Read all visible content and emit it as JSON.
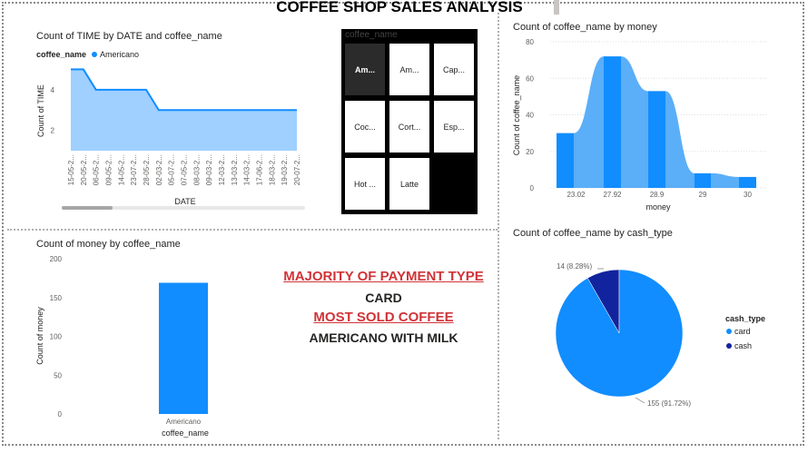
{
  "header": {
    "title": "COFFEE SHOP SALES ANALYSIS"
  },
  "colors": {
    "primary": "#118DFF",
    "light": "#9FD0FF",
    "dark": "#12239E",
    "alt_bar": "#5BAEF8",
    "callout_red": "#D13438"
  },
  "line_chart": {
    "title": "Count of TIME by DATE and coffee_name",
    "legend_title": "coffee_name",
    "legend_item": "Americano",
    "xlabel": "DATE",
    "ylabel": "Count of TIME"
  },
  "slicer": {
    "header": "coffee_name",
    "items": [
      "Am...",
      "Am...",
      "Cap...",
      "Coc...",
      "Cort...",
      "Esp...",
      "Hot ...",
      "Latte"
    ],
    "selected_index": 0
  },
  "density_chart": {
    "title": "Count of coffee_name by money",
    "xlabel": "money",
    "ylabel": "Count of coffee_name"
  },
  "bar_chart": {
    "title": "Count of money by coffee_name",
    "xlabel": "coffee_name",
    "ylabel": "Count of money"
  },
  "callouts": {
    "payment_heading": "MAJORITY OF PAYMENT TYPE",
    "payment_value": "CARD",
    "coffee_heading": "MOST SOLD COFFEE",
    "coffee_value": "AMERICANO WITH MILK"
  },
  "pie_chart": {
    "title": "Count of coffee_name by cash_type",
    "legend_title": "cash_type"
  },
  "chart_data": [
    {
      "type": "area",
      "title": "Count of TIME by DATE and coffee_name",
      "xlabel": "DATE",
      "ylabel": "Count of TIME",
      "categories": [
        "15-05-2...",
        "20-05-2...",
        "06-05-2...",
        "09-05-2...",
        "14-05-2...",
        "23-07-2...",
        "28-05-2...",
        "02-03-2...",
        "05-07-2...",
        "07-05-2...",
        "08-03-2...",
        "09-03-2...",
        "12-03-2...",
        "13-03-2...",
        "14-03-2...",
        "17-06-2...",
        "18-03-2...",
        "19-03-2...",
        "20-07-2..."
      ],
      "series": [
        {
          "name": "Americano",
          "values": [
            5,
            5,
            4,
            4,
            4,
            4,
            4,
            3,
            3,
            3,
            3,
            3,
            3,
            3,
            3,
            3,
            3,
            3,
            3
          ]
        }
      ],
      "y_ticks": [
        2,
        4
      ],
      "ylim": [
        1,
        5.6
      ],
      "legend": "top-left"
    },
    {
      "type": "bar",
      "title": "Count of coffee_name by money",
      "xlabel": "money",
      "ylabel": "Count of coffee_name",
      "categories": [
        "23.02",
        "27.92",
        "28.9",
        "29",
        "30"
      ],
      "values": [
        30,
        72,
        53,
        8,
        6
      ],
      "y_ticks": [
        0,
        20,
        40,
        60,
        80
      ],
      "ylim": [
        0,
        80
      ]
    },
    {
      "type": "bar",
      "title": "Count of money by coffee_name",
      "xlabel": "coffee_name",
      "ylabel": "Count of money",
      "categories": [
        "Americano"
      ],
      "values": [
        169
      ],
      "y_ticks": [
        0,
        50,
        100,
        150,
        200
      ],
      "ylim": [
        0,
        200
      ]
    },
    {
      "type": "pie",
      "title": "Count of coffee_name by cash_type",
      "categories": [
        "card",
        "cash"
      ],
      "values": [
        155,
        14
      ],
      "labels": [
        "155 (91.72%)",
        "14 (8.28%)"
      ],
      "legend": "right"
    }
  ]
}
